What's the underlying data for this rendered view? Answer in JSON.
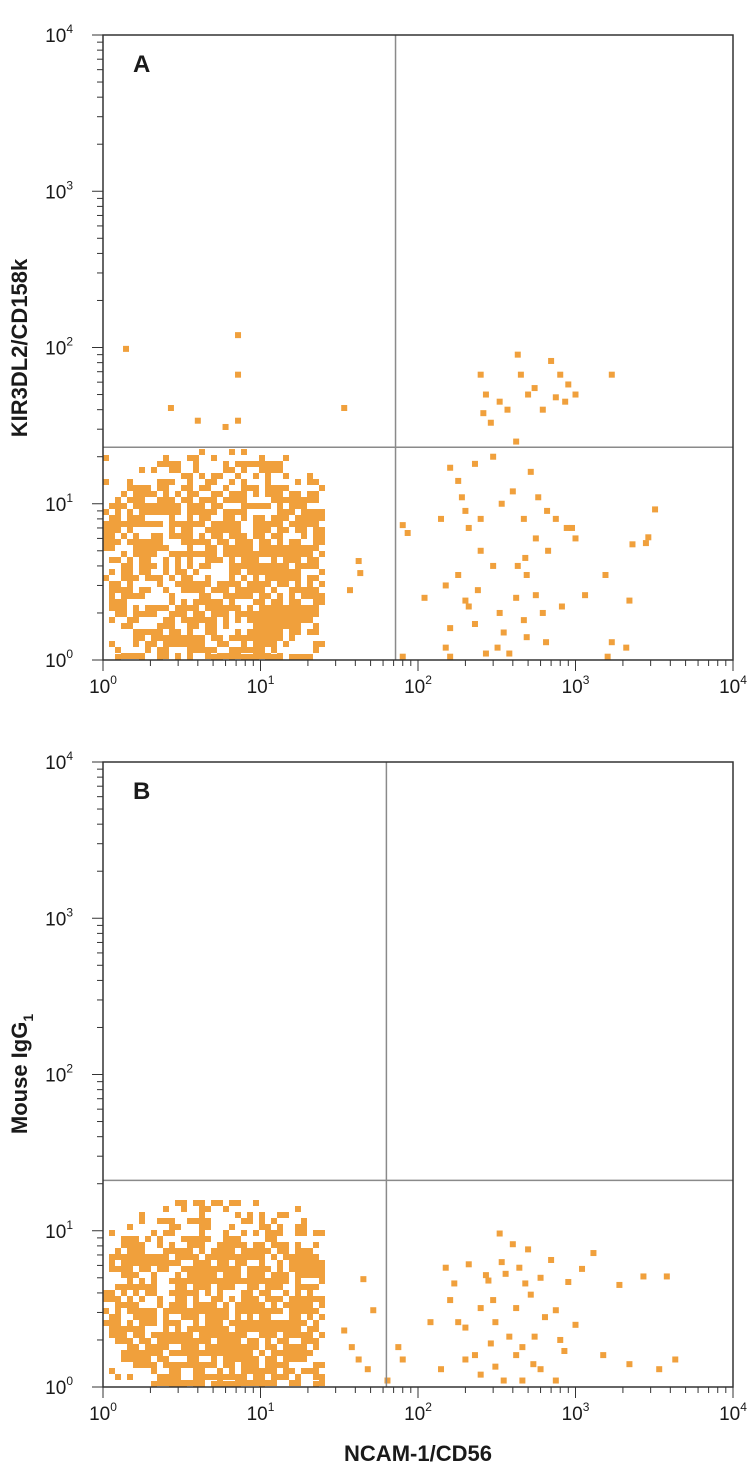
{
  "colors": {
    "dot": "#f0a03c",
    "axis": "#333333",
    "gate": "#8a8a8a",
    "text": "#1a1a1a"
  },
  "chart_data": [
    {
      "type": "scatter",
      "panel_label": "A",
      "scale": "log",
      "xlim": [
        1,
        10000
      ],
      "ylim": [
        1,
        10000
      ],
      "xlabel": "",
      "ylabel": "KIR3DL2/CD158k",
      "ylabel_sub": "",
      "tick_labels": [
        {
          "base": "10",
          "exp": "0"
        },
        {
          "base": "10",
          "exp": "1"
        },
        {
          "base": "10",
          "exp": "2"
        },
        {
          "base": "10",
          "exp": "3"
        },
        {
          "base": "10",
          "exp": "4"
        }
      ],
      "quadrant_gate": {
        "x": 72,
        "y": 23
      },
      "points": [
        [
          1.4,
          98
        ],
        [
          7.2,
          120
        ],
        [
          7.2,
          67
        ],
        [
          2.7,
          41
        ],
        [
          4.0,
          34
        ],
        [
          6.0,
          31
        ],
        [
          7.2,
          34
        ],
        [
          34,
          41
        ],
        [
          250,
          67
        ],
        [
          270,
          50
        ],
        [
          260,
          38
        ],
        [
          290,
          33
        ],
        [
          330,
          45
        ],
        [
          430,
          90
        ],
        [
          450,
          67
        ],
        [
          500,
          50
        ],
        [
          550,
          55
        ],
        [
          620,
          40
        ],
        [
          700,
          82
        ],
        [
          750,
          48
        ],
        [
          800,
          67
        ],
        [
          900,
          58
        ],
        [
          860,
          45
        ],
        [
          1000,
          50
        ],
        [
          1700,
          67
        ],
        [
          370,
          40
        ],
        [
          420,
          25
        ],
        [
          300,
          20
        ],
        [
          160,
          17
        ],
        [
          180,
          14
        ],
        [
          230,
          18
        ],
        [
          190,
          11
        ],
        [
          200,
          9
        ],
        [
          140,
          8
        ],
        [
          250,
          8
        ],
        [
          210,
          7
        ],
        [
          340,
          10
        ],
        [
          400,
          12
        ],
        [
          470,
          8
        ],
        [
          520,
          16
        ],
        [
          580,
          11
        ],
        [
          660,
          9
        ],
        [
          750,
          8
        ],
        [
          880,
          7
        ],
        [
          950,
          7
        ],
        [
          1000,
          6
        ],
        [
          560,
          6
        ],
        [
          670,
          5
        ],
        [
          430,
          4
        ],
        [
          480,
          4.5
        ],
        [
          490,
          3.5
        ],
        [
          300,
          4
        ],
        [
          250,
          5
        ],
        [
          150,
          3
        ],
        [
          180,
          3.5
        ],
        [
          110,
          2.5
        ],
        [
          200,
          2.4
        ],
        [
          240,
          2.8
        ],
        [
          420,
          2.5
        ],
        [
          560,
          2.6
        ],
        [
          210,
          2.2
        ],
        [
          330,
          2
        ],
        [
          470,
          1.8
        ],
        [
          620,
          2
        ],
        [
          820,
          2.2
        ],
        [
          1150,
          2.6
        ],
        [
          1550,
          3.5
        ],
        [
          2200,
          2.4
        ],
        [
          2300,
          5.5
        ],
        [
          2800,
          5.6
        ],
        [
          3200,
          9.2
        ],
        [
          2900,
          6.1
        ],
        [
          160,
          1.6
        ],
        [
          230,
          1.7
        ],
        [
          350,
          1.5
        ],
        [
          490,
          1.4
        ],
        [
          650,
          1.3
        ],
        [
          1700,
          1.3
        ],
        [
          2100,
          1.2
        ],
        [
          150,
          1.2
        ],
        [
          320,
          1.2
        ],
        [
          270,
          1.1
        ],
        [
          380,
          1.1
        ],
        [
          1600,
          1.05
        ],
        [
          160,
          1.05
        ],
        [
          80,
          7.3
        ],
        [
          86,
          6.5
        ],
        [
          80,
          1.05
        ],
        [
          42,
          4.3
        ],
        [
          37,
          2.8
        ],
        [
          43,
          3.6
        ]
      ],
      "dense_cluster": {
        "xmin": 1.0,
        "xmax": 24,
        "ymin": 1.0,
        "ymax": 22,
        "count": 1500
      }
    },
    {
      "type": "scatter",
      "panel_label": "B",
      "scale": "log",
      "xlim": [
        1,
        10000
      ],
      "ylim": [
        1,
        10000
      ],
      "xlabel": "NCAM-1/CD56",
      "ylabel": "Mouse IgG",
      "ylabel_sub": "1",
      "tick_labels": [
        {
          "base": "10",
          "exp": "0"
        },
        {
          "base": "10",
          "exp": "1"
        },
        {
          "base": "10",
          "exp": "2"
        },
        {
          "base": "10",
          "exp": "3"
        },
        {
          "base": "10",
          "exp": "4"
        }
      ],
      "quadrant_gate": {
        "x": 63,
        "y": 21
      },
      "points": [
        [
          75,
          1.8
        ],
        [
          80,
          1.5
        ],
        [
          120,
          2.6
        ],
        [
          150,
          5.8
        ],
        [
          160,
          3.6
        ],
        [
          170,
          4.6
        ],
        [
          180,
          2.6
        ],
        [
          200,
          2.4
        ],
        [
          210,
          6.1
        ],
        [
          230,
          1.6
        ],
        [
          250,
          3.2
        ],
        [
          270,
          5.2
        ],
        [
          280,
          4.8
        ],
        [
          300,
          3.6
        ],
        [
          310,
          2.6
        ],
        [
          330,
          9.6
        ],
        [
          340,
          6.3
        ],
        [
          360,
          5.3
        ],
        [
          380,
          2.1
        ],
        [
          400,
          8.2
        ],
        [
          420,
          3.2
        ],
        [
          440,
          5.8
        ],
        [
          460,
          1.8
        ],
        [
          480,
          4.6
        ],
        [
          500,
          7.6
        ],
        [
          520,
          3.9
        ],
        [
          550,
          2.1
        ],
        [
          600,
          5.0
        ],
        [
          640,
          2.8
        ],
        [
          700,
          6.5
        ],
        [
          750,
          3.1
        ],
        [
          800,
          2.0
        ],
        [
          850,
          1.7
        ],
        [
          900,
          4.7
        ],
        [
          1000,
          2.5
        ],
        [
          1100,
          5.7
        ],
        [
          1300,
          7.2
        ],
        [
          1500,
          1.6
        ],
        [
          1900,
          4.5
        ],
        [
          2200,
          1.4
        ],
        [
          2700,
          5.1
        ],
        [
          3800,
          5.1
        ],
        [
          4300,
          1.5
        ],
        [
          3400,
          1.3
        ],
        [
          140,
          1.3
        ],
        [
          250,
          1.2
        ],
        [
          350,
          1.1
        ],
        [
          460,
          1.1
        ],
        [
          600,
          1.3
        ],
        [
          750,
          1.1
        ],
        [
          310,
          1.35
        ],
        [
          420,
          1.6
        ],
        [
          540,
          1.4
        ],
        [
          200,
          1.5
        ],
        [
          290,
          1.9
        ],
        [
          45,
          4.9
        ],
        [
          52,
          3.1
        ],
        [
          48,
          1.3
        ],
        [
          64,
          1.1
        ],
        [
          34,
          2.3
        ],
        [
          38,
          1.8
        ],
        [
          42,
          1.5
        ]
      ],
      "dense_cluster": {
        "xmin": 1.0,
        "xmax": 24,
        "ymin": 1.0,
        "ymax": 16,
        "count": 1400
      }
    }
  ]
}
